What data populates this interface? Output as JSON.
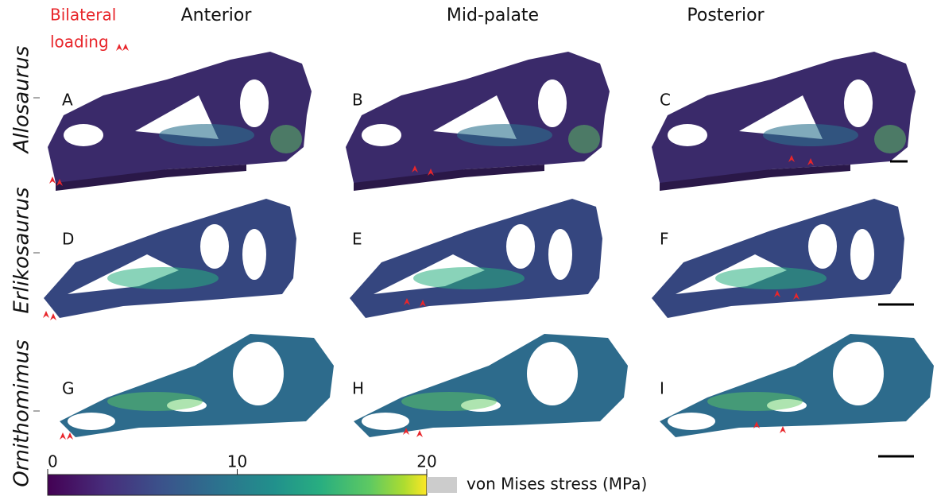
{
  "header": {
    "loading_legend": [
      "Bilateral",
      "loading"
    ]
  },
  "columns": [
    "Anterior",
    "Mid-palate",
    "Posterior"
  ],
  "rows": [
    "Allosaurus",
    "Erlikosaurus",
    "Ornithomimus"
  ],
  "panels": [
    "A",
    "B",
    "C",
    "D",
    "E",
    "F",
    "G",
    "H",
    "I"
  ],
  "colorbar": {
    "ticks": [
      0,
      10,
      20
    ],
    "label": "von Mises stress (MPa)"
  }
}
